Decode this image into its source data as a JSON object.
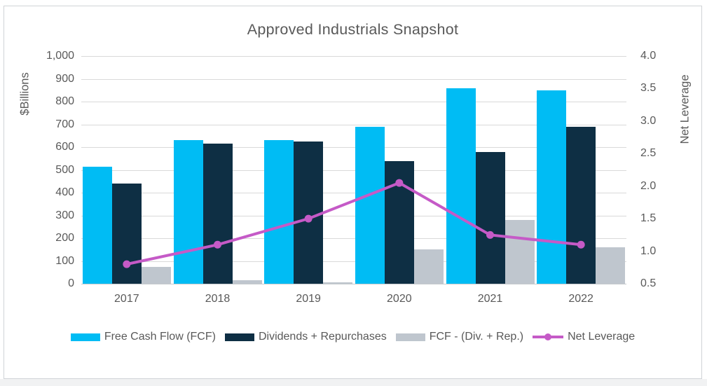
{
  "chart_data": {
    "type": "combo-bar-line",
    "title": "Approved Industrials Snapshot",
    "categories": [
      "2017",
      "2018",
      "2019",
      "2020",
      "2021",
      "2022"
    ],
    "series": [
      {
        "name": "Free Cash Flow (FCF)",
        "type": "bar",
        "axis": "left",
        "color": "#00BCF4",
        "values": [
          515,
          630,
          630,
          690,
          860,
          850
        ]
      },
      {
        "name": "Dividends + Repurchases",
        "type": "bar",
        "axis": "left",
        "color": "#0E2F44",
        "values": [
          440,
          615,
          625,
          540,
          580,
          690
        ]
      },
      {
        "name": "FCF - (Div. + Rep.)",
        "type": "bar",
        "axis": "left",
        "color": "#BFC6CE",
        "values": [
          75,
          15,
          5,
          150,
          280,
          160
        ]
      },
      {
        "name": "Net Leverage",
        "type": "line",
        "axis": "right",
        "color": "#C55AC7",
        "values": [
          0.8,
          1.1,
          1.5,
          2.05,
          1.25,
          1.1
        ]
      }
    ],
    "left_axis": {
      "label": "$Billions",
      "min": 0,
      "max": 1000,
      "step": 100,
      "tick_labels": [
        "1,000",
        "900",
        "800",
        "700",
        "600",
        "500",
        "400",
        "300",
        "200",
        "100",
        "0"
      ]
    },
    "right_axis": {
      "label": "Net Leverage",
      "min": 0.5,
      "max": 4.0,
      "step": 0.5,
      "tick_labels": [
        "4.0",
        "3.5",
        "3.0",
        "2.5",
        "2.0",
        "1.5",
        "1.0",
        "0.5"
      ]
    },
    "grid": true,
    "legend_position": "bottom",
    "colors": {
      "text": "#595959",
      "gridline": "#D9D9D9",
      "card_border": "#D0D3D7"
    }
  }
}
